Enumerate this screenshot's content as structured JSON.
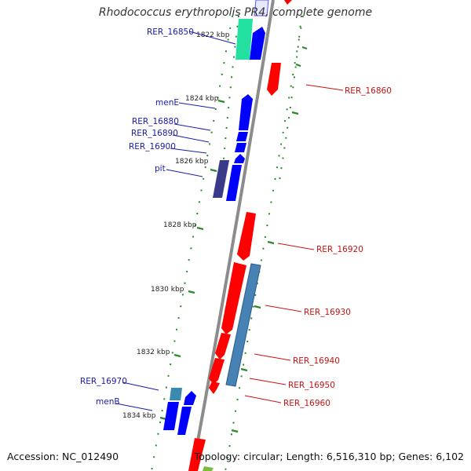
{
  "title": "Rhodococcus erythropolis PR4, complete genome",
  "footer": {
    "accession": "Accession: NC_012490",
    "summary": "Topology: circular; Length: 6,516,310 bp; Genes: 6,102"
  },
  "colors": {
    "forward_strand": "#0000ff",
    "reverse_strand": "#ff0000",
    "backbone": "#8c8c8c",
    "gc_marks": "#2a8a2a",
    "label_left": "#1a1aaa",
    "label_right": "#cc1111"
  },
  "kbp_ticks": [
    "1822 kbp",
    "1824 kbp",
    "1826 kbp",
    "1828 kbp",
    "1830 kbp",
    "1832 kbp",
    "1834 kbp"
  ],
  "genes_left": [
    "RER_16850",
    "menE",
    "RER_16880",
    "RER_16890",
    "RER_16900",
    "pit",
    "RER_16970",
    "menB"
  ],
  "genes_right": [
    "RER_16860",
    "RER_16920",
    "RER_16930",
    "RER_16940",
    "RER_16950",
    "RER_16960"
  ]
}
